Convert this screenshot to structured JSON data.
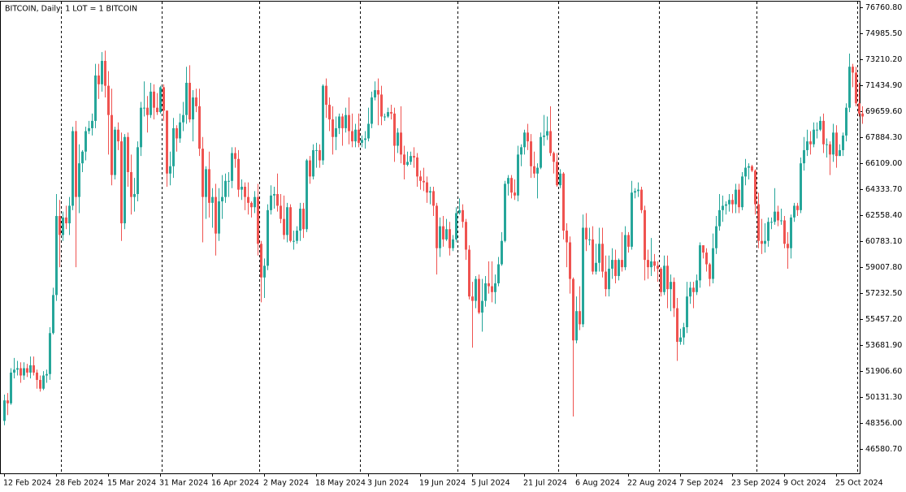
{
  "chart_data": {
    "type": "candlestick",
    "title": "BITCOIN, Daily:  1 LOT = 1 BITCOIN",
    "up_color": "#26a69a",
    "down_color": "#ef5350",
    "ylim": [
      44916,
      77149
    ],
    "yticks": [
      {
        "value": 46580.7,
        "label": "46580.70"
      },
      {
        "value": 48356.0,
        "label": "48356.00"
      },
      {
        "value": 50131.3,
        "label": "50131.30"
      },
      {
        "value": 51906.6,
        "label": "51906.60"
      },
      {
        "value": 53681.9,
        "label": "53681.90"
      },
      {
        "value": 55457.2,
        "label": "55457.20"
      },
      {
        "value": 57232.5,
        "label": "57232.50"
      },
      {
        "value": 59007.8,
        "label": "59007.80"
      },
      {
        "value": 60783.1,
        "label": "60783.10"
      },
      {
        "value": 62558.4,
        "label": "62558.40"
      },
      {
        "value": 64333.7,
        "label": "64333.70"
      },
      {
        "value": 66109.0,
        "label": "66109.00"
      },
      {
        "value": 67884.3,
        "label": "67884.30"
      },
      {
        "value": 69659.6,
        "label": "69659.60"
      },
      {
        "value": 71434.9,
        "label": "71434.90"
      },
      {
        "value": 73210.2,
        "label": "73210.20"
      },
      {
        "value": 74985.5,
        "label": "74985.50"
      },
      {
        "value": 76760.8,
        "label": "76760.80"
      }
    ],
    "categories": [
      "12 Feb 2024",
      null,
      null,
      null,
      null,
      null,
      null,
      null,
      null,
      null,
      null,
      null,
      null,
      null,
      null,
      null,
      "28 Feb 2024",
      null,
      null,
      null,
      null,
      null,
      null,
      null,
      null,
      null,
      null,
      null,
      null,
      null,
      null,
      null,
      "15 Mar 2024",
      null,
      null,
      null,
      null,
      null,
      null,
      null,
      null,
      null,
      null,
      null,
      null,
      null,
      null,
      null,
      "31 Mar 2024",
      null,
      null,
      null,
      null,
      null,
      null,
      null,
      null,
      null,
      null,
      null,
      null,
      null,
      null,
      null,
      "16 Apr 2024",
      null,
      null,
      null,
      null,
      null,
      null,
      null,
      null,
      null,
      null,
      null,
      null,
      null,
      null,
      null,
      "2 May 2024",
      null,
      null,
      null,
      null,
      null,
      null,
      null,
      null,
      null,
      null,
      null,
      null,
      null,
      null,
      null,
      "18 May 2024",
      null,
      null,
      null,
      null,
      null,
      null,
      null,
      null,
      null,
      null,
      null,
      null,
      null,
      null,
      null,
      "3 Jun 2024",
      null,
      null,
      null,
      null,
      null,
      null,
      null,
      null,
      null,
      null,
      null,
      null,
      null,
      null,
      null,
      "19 Jun 2024",
      null,
      null,
      null,
      null,
      null,
      null,
      null,
      null,
      null,
      null,
      null,
      null,
      null,
      null,
      null,
      "5 Jul 2024",
      null,
      null,
      null,
      null,
      null,
      null,
      null,
      null,
      null,
      null,
      null,
      null,
      null,
      null,
      null,
      "21 Jul 2024",
      null,
      null,
      null,
      null,
      null,
      null,
      null,
      null,
      null,
      null,
      null,
      null,
      null,
      null,
      null,
      "6 Aug 2024",
      null,
      null,
      null,
      null,
      null,
      null,
      null,
      null,
      null,
      null,
      null,
      null,
      null,
      null,
      null,
      "22 Aug 2024",
      null,
      null,
      null,
      null,
      null,
      null,
      null,
      null,
      null,
      null,
      null,
      null,
      null,
      null,
      null,
      "7 Sep 2024",
      null,
      null,
      null,
      null,
      null,
      null,
      null,
      null,
      null,
      null,
      null,
      null,
      null,
      null,
      null,
      "23 Sep 2024",
      null,
      null,
      null,
      null,
      null,
      null,
      null,
      null,
      null,
      null,
      null,
      null,
      null,
      null,
      null,
      "9 Oct 2024",
      null,
      null,
      null,
      null,
      null,
      null,
      null,
      null,
      null,
      null,
      null,
      null,
      null,
      null,
      null,
      "25 Oct 2024",
      null,
      null,
      null,
      null,
      null,
      null,
      null,
      null
    ],
    "open": [
      48500,
      49900,
      49700,
      51800,
      52000,
      52100,
      51600,
      52100,
      51800,
      52300,
      51800,
      51300,
      50700,
      51600,
      51700,
      54500,
      57100,
      62500,
      61200,
      62400,
      62000,
      63200,
      68300,
      63800,
      66100,
      66900,
      68300,
      68500,
      69000,
      72100,
      71500,
      73100,
      71400,
      69400,
      65300,
      68400,
      67600,
      62000,
      67900,
      65500,
      63800,
      64000,
      67200,
      69900,
      69900,
      69400,
      71000,
      69900,
      69600,
      71300,
      69700,
      65400,
      65900,
      68500,
      67800,
      68900,
      69400,
      71600,
      69100,
      70600,
      70000,
      67100,
      63800,
      65700,
      63400,
      63800,
      61300,
      63500,
      63800,
      64900,
      64900,
      66800,
      66400,
      64300,
      64500,
      63800,
      63400,
      63100,
      63800,
      60600,
      58300,
      59100,
      62900,
      63900,
      64000,
      63200,
      62300,
      61200,
      63100,
      60800,
      60800,
      61500,
      63000,
      61600,
      66300,
      65200,
      67000,
      67000,
      66300,
      71400,
      70100,
      69100,
      67900,
      68500,
      69300,
      68500,
      69400,
      68300,
      67600,
      68400,
      67500,
      67700,
      67800,
      68800,
      70600,
      71100,
      70800,
      69300,
      69300,
      69600,
      69500,
      67300,
      68200,
      66700,
      66000,
      66200,
      66600,
      66500,
      65200,
      64900,
      64800,
      64100,
      64200,
      63200,
      60300,
      61800,
      60900,
      61600,
      60300,
      60900,
      62700,
      62900,
      62100,
      60200,
      57000,
      56700,
      58200,
      55900,
      56700,
      57900,
      57700,
      57300,
      57900,
      59200,
      60800,
      64700,
      65100,
      64100,
      63900,
      66700,
      67200,
      68200,
      67600,
      65900,
      65400,
      65800,
      67900,
      68000,
      68300,
      66800,
      66200,
      64600,
      65400,
      61500,
      60700,
      58200,
      54000,
      56000,
      55100,
      61700,
      60900,
      60900,
      58700,
      59300,
      60600,
      58700,
      57500,
      58900,
      59500,
      58400,
      59500,
      59000,
      61200,
      60400,
      64100,
      64200,
      64300,
      62900,
      59500,
      59000,
      59400,
      59100,
      58900,
      57300,
      59100,
      57500,
      58000,
      56200,
      53900,
      54200,
      54900,
      57000,
      57600,
      57300,
      58100,
      60500,
      60000,
      59200,
      58200,
      60300,
      61800,
      62900,
      63200,
      63300,
      63600,
      63300,
      64300,
      63100,
      65200,
      65800,
      65900,
      65600,
      63300,
      60800,
      60600,
      60800,
      62100,
      62100,
      62800,
      62200,
      62200,
      60600,
      60300,
      62400,
      63200,
      62900,
      66100,
      67000,
      67600,
      67400,
      68400,
      68400,
      69000,
      67400,
      67400,
      66700,
      68200,
      66600,
      67000,
      68000,
      69900,
      72700,
      72300,
      70200,
      69500
    ],
    "high": [
      50300,
      50400,
      52100,
      52800,
      52600,
      52500,
      52500,
      52400,
      52900,
      52900,
      52000,
      51600,
      51900,
      52000,
      54900,
      57600,
      64000,
      63600,
      62800,
      63200,
      63800,
      68600,
      69000,
      67400,
      67000,
      68600,
      69000,
      69500,
      72900,
      72900,
      73700,
      73800,
      72400,
      71200,
      68600,
      68900,
      68200,
      68100,
      68200,
      66700,
      65100,
      67600,
      70300,
      71700,
      70700,
      71600,
      71500,
      70900,
      71400,
      71500,
      69700,
      66900,
      69200,
      68700,
      69500,
      70300,
      72700,
      72800,
      71100,
      71200,
      71200,
      67900,
      65900,
      66900,
      64400,
      64700,
      64400,
      65300,
      65400,
      65500,
      67200,
      67200,
      67000,
      65000,
      64800,
      64800,
      63500,
      64200,
      64700,
      60800,
      59600,
      63300,
      64600,
      64500,
      65400,
      64000,
      63900,
      63400,
      63300,
      61500,
      61800,
      63400,
      63400,
      66400,
      66600,
      67400,
      67500,
      67400,
      71500,
      71900,
      70600,
      70000,
      69300,
      69500,
      69500,
      69900,
      70600,
      69500,
      68800,
      69500,
      68000,
      68300,
      69900,
      71000,
      71700,
      71900,
      71400,
      69500,
      69900,
      70100,
      69900,
      68500,
      70000,
      67300,
      66900,
      66900,
      67200,
      66800,
      65600,
      65800,
      65200,
      64500,
      64500,
      63400,
      62400,
      62500,
      62300,
      62100,
      61200,
      63100,
      63700,
      63300,
      62300,
      60500,
      58000,
      58400,
      58500,
      58200,
      58400,
      59400,
      59400,
      58500,
      59700,
      61400,
      64900,
      65300,
      65300,
      65000,
      67300,
      67400,
      68400,
      68800,
      68100,
      66900,
      66100,
      68200,
      69400,
      69300,
      70000,
      66900,
      66800,
      65700,
      65500,
      62000,
      61100,
      58300,
      57000,
      57700,
      62600,
      62700,
      61700,
      61800,
      60600,
      61700,
      61700,
      59800,
      59800,
      60300,
      60200,
      59600,
      61400,
      61800,
      61400,
      64900,
      64400,
      64800,
      64500,
      63200,
      60200,
      61000,
      59900,
      59400,
      59000,
      59800,
      59800,
      58500,
      58300,
      56900,
      54800,
      55200,
      58000,
      58000,
      58000,
      58500,
      60700,
      60500,
      60300,
      59300,
      61300,
      62500,
      64000,
      63900,
      63500,
      64000,
      64000,
      64700,
      64700,
      65500,
      66400,
      66100,
      66000,
      65700,
      64100,
      62300,
      62000,
      62400,
      62400,
      64400,
      63200,
      63000,
      62500,
      61400,
      62600,
      63400,
      63400,
      66500,
      67900,
      68400,
      68300,
      68900,
      68900,
      69300,
      69500,
      67800,
      67600,
      68800,
      68700,
      67400,
      68200,
      70200,
      73600,
      72900,
      72700,
      71600,
      70000
    ],
    "low": [
      48200,
      48900,
      49600,
      51400,
      51600,
      51100,
      51300,
      51500,
      51400,
      51600,
      50700,
      50500,
      50600,
      51100,
      51300,
      54400,
      56700,
      59000,
      60800,
      61600,
      61200,
      62900,
      59000,
      62700,
      65500,
      66300,
      68100,
      68000,
      68500,
      70500,
      71000,
      70600,
      66700,
      64600,
      65000,
      67000,
      60800,
      61600,
      64500,
      62600,
      62800,
      63500,
      66600,
      69300,
      68200,
      69200,
      69100,
      69400,
      69500,
      69000,
      64500,
      64600,
      65100,
      66900,
      67500,
      68300,
      68800,
      68900,
      67600,
      69600,
      66600,
      60700,
      62300,
      62400,
      61700,
      59800,
      60800,
      62300,
      63400,
      63800,
      64400,
      65800,
      63800,
      63600,
      62900,
      62600,
      62400,
      62700,
      59800,
      56600,
      56900,
      58800,
      62600,
      63000,
      62800,
      62000,
      60900,
      60700,
      60700,
      60200,
      60600,
      60800,
      61000,
      61400,
      64700,
      65000,
      65800,
      65800,
      66000,
      69200,
      68300,
      66700,
      67000,
      68100,
      67300,
      68200,
      67400,
      67200,
      67200,
      67200,
      67200,
      67100,
      67600,
      68500,
      70400,
      68700,
      68700,
      69000,
      69200,
      69100,
      66200,
      66800,
      66100,
      65000,
      65900,
      66000,
      65800,
      64500,
      64300,
      64200,
      63400,
      63300,
      62500,
      58500,
      59700,
      60400,
      60800,
      59800,
      60100,
      60700,
      62600,
      61700,
      59500,
      56800,
      53500,
      56200,
      55800,
      54600,
      56300,
      57200,
      56600,
      56500,
      57700,
      59100,
      60700,
      63900,
      63700,
      63600,
      63500,
      65900,
      66700,
      67000,
      65100,
      65100,
      63700,
      65700,
      67300,
      67700,
      66600,
      65400,
      64500,
      64400,
      60900,
      59000,
      57200,
      48800,
      53800,
      54700,
      54900,
      60100,
      60500,
      58500,
      58500,
      58700,
      58300,
      57000,
      57000,
      58200,
      57900,
      58100,
      58700,
      58800,
      60000,
      60200,
      63700,
      63800,
      62700,
      58100,
      58200,
      58400,
      58700,
      58000,
      57000,
      57100,
      56200,
      56000,
      55600,
      52600,
      53700,
      53700,
      54500,
      56500,
      56200,
      57100,
      57600,
      59600,
      58700,
      57700,
      57900,
      59900,
      61500,
      62100,
      62600,
      62800,
      62700,
      62700,
      62700,
      62900,
      64600,
      65000,
      65500,
      62600,
      60300,
      59900,
      60000,
      60400,
      61600,
      61900,
      61800,
      61900,
      60300,
      58900,
      59600,
      62100,
      62500,
      62700,
      65600,
      66600,
      66700,
      67200,
      67800,
      68300,
      66800,
      66500,
      65300,
      66200,
      65800,
      66600,
      66600,
      67600,
      69600,
      71300,
      70000,
      69300,
      68800
    ],
    "close": [
      49900,
      49700,
      51800,
      52000,
      52100,
      51600,
      52100,
      51800,
      52300,
      51800,
      51300,
      50700,
      51600,
      51700,
      54500,
      57100,
      62500,
      61200,
      62400,
      62000,
      63200,
      68300,
      63800,
      66100,
      66900,
      68300,
      68500,
      69000,
      72100,
      71500,
      73100,
      71400,
      69400,
      65300,
      68400,
      67600,
      62000,
      67900,
      65500,
      63800,
      64000,
      67200,
      69900,
      69900,
      69400,
      71000,
      69900,
      69600,
      71300,
      69700,
      65400,
      65900,
      68500,
      67800,
      68900,
      69400,
      71600,
      69100,
      70600,
      70000,
      67100,
      63800,
      65700,
      63400,
      63800,
      61300,
      63500,
      63800,
      64900,
      64900,
      66800,
      66400,
      64300,
      64500,
      63800,
      63400,
      63100,
      63800,
      60600,
      58300,
      59100,
      62900,
      63900,
      64000,
      63200,
      62300,
      61200,
      63100,
      60800,
      60800,
      61500,
      63000,
      61600,
      66300,
      65200,
      67000,
      67000,
      66300,
      71400,
      70100,
      69100,
      67900,
      68500,
      69300,
      68500,
      69400,
      68300,
      67600,
      68400,
      67500,
      67700,
      67800,
      68800,
      70600,
      71100,
      70800,
      69300,
      69300,
      69600,
      69500,
      67300,
      68200,
      66700,
      66000,
      66200,
      66600,
      66500,
      65200,
      64900,
      64800,
      64100,
      64200,
      63200,
      60300,
      61800,
      60900,
      61600,
      60300,
      60900,
      62700,
      62900,
      62100,
      60200,
      57000,
      56700,
      58200,
      55900,
      56700,
      57900,
      57700,
      57300,
      57900,
      59200,
      60800,
      64700,
      65100,
      64100,
      63900,
      66700,
      67200,
      68200,
      67600,
      65900,
      65400,
      65800,
      67900,
      68000,
      68300,
      66800,
      66200,
      64600,
      65400,
      61500,
      60700,
      58200,
      54000,
      56000,
      55100,
      61700,
      60900,
      60900,
      58700,
      59300,
      60600,
      58700,
      57500,
      58900,
      59500,
      58400,
      59500,
      59000,
      61200,
      60400,
      64100,
      64200,
      64300,
      62900,
      59500,
      59000,
      59400,
      59100,
      58900,
      57300,
      59100,
      57500,
      58000,
      56200,
      53900,
      54200,
      54900,
      57000,
      57600,
      57300,
      58100,
      60500,
      60000,
      59200,
      58200,
      60300,
      61800,
      62900,
      63200,
      63300,
      63600,
      63300,
      64300,
      63100,
      65200,
      65800,
      65900,
      65600,
      63300,
      60800,
      60600,
      60800,
      62100,
      62100,
      62800,
      62200,
      62200,
      60600,
      60300,
      62400,
      63200,
      62900,
      66100,
      67000,
      67600,
      67400,
      68400,
      68400,
      69000,
      67400,
      67400,
      66700,
      68200,
      66600,
      67000,
      68000,
      69900,
      72700,
      72300,
      70200,
      69500,
      69300
    ]
  }
}
